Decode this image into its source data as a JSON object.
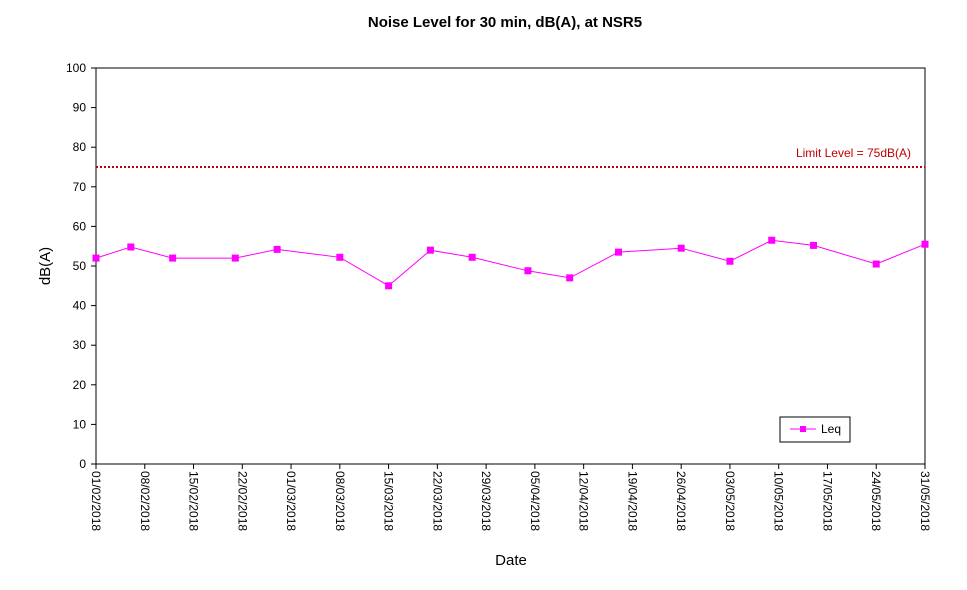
{
  "chart_data": {
    "type": "line",
    "title": "Noise Level for 30 min, dB(A), at NSR5",
    "xlabel": "Date",
    "ylabel": "dB(A)",
    "ylim": [
      0,
      100
    ],
    "yticks": [
      0,
      10,
      20,
      30,
      40,
      50,
      60,
      70,
      80,
      90,
      100
    ],
    "xlim": [
      "01/02/2018",
      "31/05/2018"
    ],
    "xticks": [
      "01/02/2018",
      "08/02/2018",
      "15/02/2018",
      "22/02/2018",
      "01/03/2018",
      "08/03/2018",
      "15/03/2018",
      "22/03/2018",
      "29/03/2018",
      "05/04/2018",
      "12/04/2018",
      "19/04/2018",
      "26/04/2018",
      "03/05/2018",
      "10/05/2018",
      "17/05/2018",
      "24/05/2018",
      "31/05/2018"
    ],
    "grid": false,
    "legend": "bottom-right",
    "series": [
      {
        "name": "Leq",
        "color": "#ff00ff",
        "marker": "square",
        "x": [
          "01/02/2018",
          "06/02/2018",
          "12/02/2018",
          "21/02/2018",
          "27/02/2018",
          "08/03/2018",
          "15/03/2018",
          "21/03/2018",
          "27/03/2018",
          "04/04/2018",
          "10/04/2018",
          "17/04/2018",
          "26/04/2018",
          "03/05/2018",
          "09/05/2018",
          "15/05/2018",
          "24/05/2018",
          "31/05/2018"
        ],
        "values": [
          52,
          54.8,
          52,
          52,
          54.2,
          52.2,
          45,
          54,
          52.2,
          48.8,
          47,
          53.5,
          54.5,
          51.2,
          56.5,
          55.2,
          50.5,
          55.5
        ]
      }
    ],
    "reference_line": {
      "value": 75,
      "label": "Limit Level  = 75dB(A)",
      "color": "#c00000",
      "style": "dotted"
    }
  }
}
